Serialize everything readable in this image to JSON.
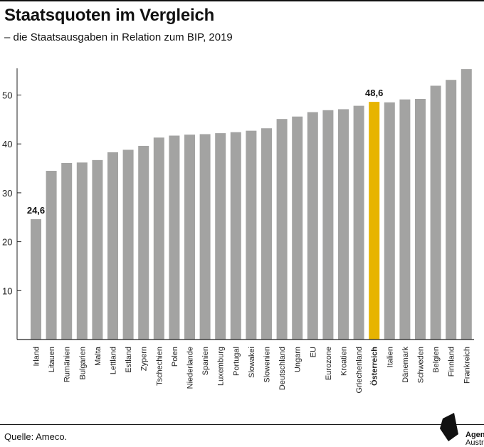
{
  "header": {
    "title": "Staatsquoten im Vergleich",
    "subtitle": "– die Staatsausgaben in Relation zum BIP, 2019"
  },
  "footer": {
    "source": "Quelle: Ameco.",
    "logo_line1": "Agenda",
    "logo_line2": "Austria"
  },
  "chart_data": {
    "type": "bar",
    "categories": [
      "Irland",
      "Litauen",
      "Rumänien",
      "Bulgarien",
      "Malta",
      "Lettland",
      "Estland",
      "Zypern",
      "Tschechien",
      "Polen",
      "Niederlande",
      "Spanien",
      "Luxemburg",
      "Portugal",
      "Slowakei",
      "Slowenien",
      "Deutschland",
      "Ungarn",
      "EU",
      "Eurozone",
      "Kroatien",
      "Griechenland",
      "Österreich",
      "Italien",
      "Dänemark",
      "Schweden",
      "Belgien",
      "Finnland",
      "Frankreich"
    ],
    "values": [
      24.6,
      34.5,
      36.1,
      36.2,
      36.7,
      38.3,
      38.8,
      39.6,
      41.3,
      41.7,
      41.9,
      42.0,
      42.2,
      42.4,
      42.7,
      43.2,
      45.1,
      45.6,
      46.5,
      46.9,
      47.1,
      47.8,
      48.6,
      48.5,
      49.1,
      49.2,
      51.9,
      53.1,
      55.3
    ],
    "highlight": "Österreich",
    "data_labels": [
      {
        "category": "Irland",
        "text": "24,6"
      },
      {
        "category": "Österreich",
        "text": "48,6"
      }
    ],
    "yticks": [
      "10",
      "20",
      "30",
      "40",
      "50"
    ],
    "ylim": [
      0,
      57
    ],
    "grid": false,
    "colors": {
      "bar": "#a3a3a2",
      "highlight": "#e7b400",
      "axis": "#222222"
    }
  }
}
